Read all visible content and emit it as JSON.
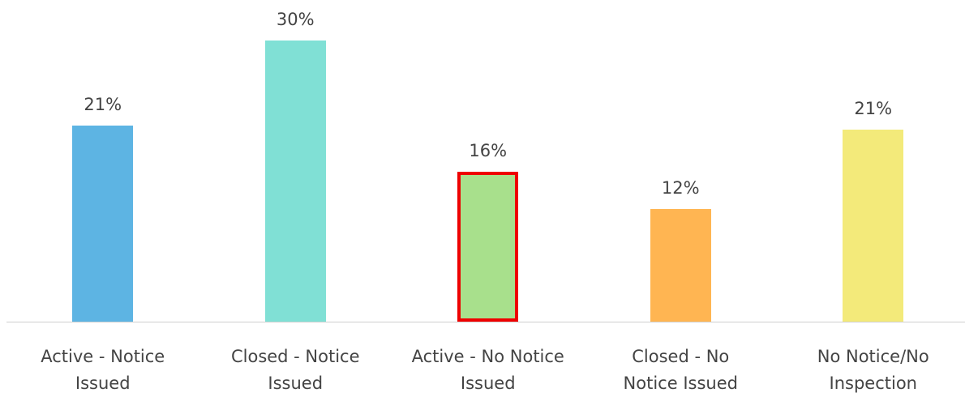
{
  "chart_data": {
    "type": "bar",
    "categories": [
      "Active - Notice Issued",
      "Closed - Notice Issued",
      "Active - No Notice Issued",
      "Closed - No Notice Issued",
      "No Notice/No Inspection"
    ],
    "values": [
      20.9,
      30,
      16,
      12,
      20.5
    ],
    "value_labels": [
      "21%",
      "30%",
      "16%",
      "12%",
      "21%"
    ],
    "colors": [
      "#5db4e3",
      "#80e0d5",
      "#a8e08c",
      "#ffb552",
      "#f3ea7a"
    ],
    "highlight": {
      "index": 2,
      "color": "#ee0000"
    }
  }
}
